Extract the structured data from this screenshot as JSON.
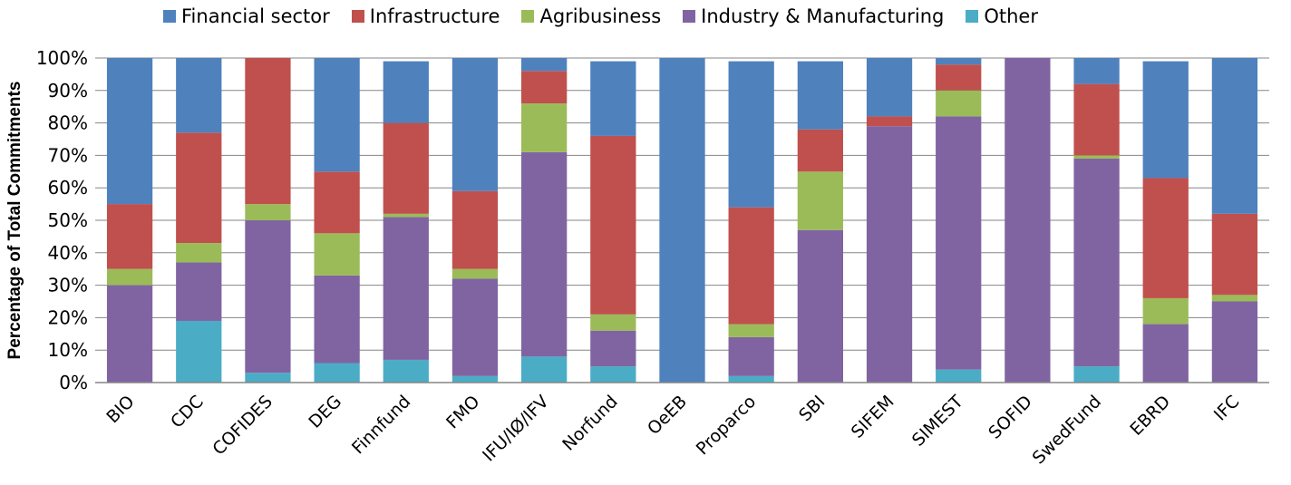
{
  "chart_data": {
    "type": "bar",
    "stacked": true,
    "ylabel": "Percentage of Total Commitments",
    "ylim": [
      0,
      100
    ],
    "y_ticks": [
      "0%",
      "10%",
      "20%",
      "30%",
      "40%",
      "50%",
      "60%",
      "70%",
      "80%",
      "90%",
      "100%"
    ],
    "grid": true,
    "legend_position": "top",
    "categories": [
      "BIO",
      "CDC",
      "COFIDES",
      "DEG",
      "Finnfund",
      "FMO",
      "IFU/IØ/IFV",
      "Norfund",
      "OeEB",
      "Proparco",
      "SBI",
      "SIFEM",
      "SIMEST",
      "SOFID",
      "SwedFund",
      "EBRD",
      "IFC"
    ],
    "series": [
      {
        "name": "Other",
        "color": "#4bacc6",
        "values": [
          0,
          19,
          3,
          6,
          7,
          2,
          8,
          5,
          0,
          2,
          0,
          0,
          4,
          0,
          5,
          0,
          0
        ]
      },
      {
        "name": "Industry & Manufacturing",
        "color": "#8064a2",
        "values": [
          30,
          18,
          47,
          27,
          44,
          30,
          63,
          11,
          0,
          12,
          47,
          79,
          78,
          100,
          64,
          18,
          25
        ]
      },
      {
        "name": "Agribusiness",
        "color": "#9bbb59",
        "values": [
          5,
          6,
          5,
          13,
          1,
          3,
          15,
          5,
          0,
          4,
          18,
          0,
          8,
          0,
          1,
          8,
          2
        ]
      },
      {
        "name": "Infrastructure",
        "color": "#c0504d",
        "values": [
          20,
          34,
          45,
          19,
          28,
          24,
          10,
          55,
          0,
          36,
          13,
          3,
          8,
          0,
          22,
          37,
          25
        ]
      },
      {
        "name": "Financial sector",
        "color": "#4f81bd",
        "values": [
          45,
          23,
          0,
          35,
          19,
          41,
          4,
          23,
          100,
          45,
          21,
          18,
          2,
          0,
          8,
          36,
          48
        ]
      }
    ]
  },
  "legend": {
    "items": [
      {
        "label": "Financial sector",
        "color": "#4f81bd"
      },
      {
        "label": "Infrastructure",
        "color": "#c0504d"
      },
      {
        "label": "Agribusiness",
        "color": "#9bbb59"
      },
      {
        "label": "Industry & Manufacturing",
        "color": "#8064a2"
      },
      {
        "label": "Other",
        "color": "#4bacc6"
      }
    ]
  }
}
